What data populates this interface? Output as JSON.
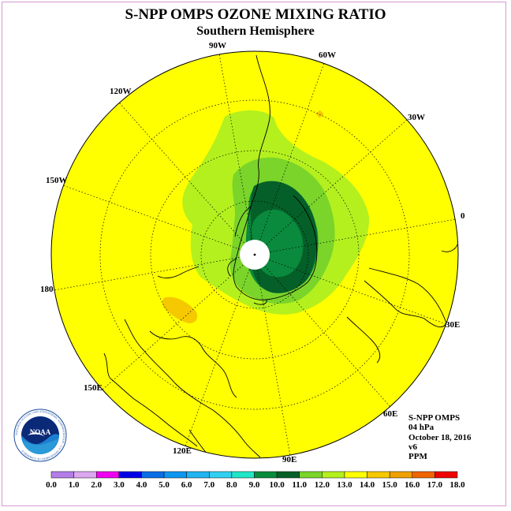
{
  "title": "S-NPP OMPS OZONE MIXING RATIO",
  "subtitle": "Southern Hemisphere",
  "longitude_labels": [
    "90W",
    "60W",
    "30W",
    "0",
    "30E",
    "60E",
    "90E",
    "120E",
    "150E",
    "180",
    "150W",
    "120W"
  ],
  "info": {
    "instrument": "S-NPP OMPS",
    "level": "04 hPa",
    "date": "October 18, 2016",
    "version": "v6",
    "units": "PPM"
  },
  "logo": {
    "text": "NOAA",
    "ring_text": "NATIONAL OCEANIC AND ATMOSPHERIC ADMINISTRATION · U.S. DEPARTMENT OF COMMERCE"
  },
  "colorbar": {
    "ticks": [
      "0.0",
      "1.0",
      "2.0",
      "3.0",
      "4.0",
      "5.0",
      "6.0",
      "7.0",
      "8.0",
      "9.0",
      "10.0",
      "11.0",
      "12.0",
      "13.0",
      "14.0",
      "15.0",
      "16.0",
      "17.0",
      "18.0"
    ],
    "colors": [
      "#b37ee8",
      "#dca8f0",
      "#f000f0",
      "#0000e6",
      "#0a6ee6",
      "#0c96f0",
      "#20b4f0",
      "#30d0f0",
      "#20e6c8",
      "#0a8a3c",
      "#055f28",
      "#7ad42a",
      "#b4f01e",
      "#ffff00",
      "#f5c800",
      "#f0a000",
      "#f06400",
      "#f00000",
      "#8a5a32"
    ]
  },
  "colors": {
    "background_field": "#ffff00",
    "level_11": "#b4f01e",
    "level_10": "#7ad42a",
    "level_9": "#0a8a3c",
    "level_8": "#055f28",
    "level_14": "#f5c800",
    "polar_fill": "#ffffff"
  }
}
